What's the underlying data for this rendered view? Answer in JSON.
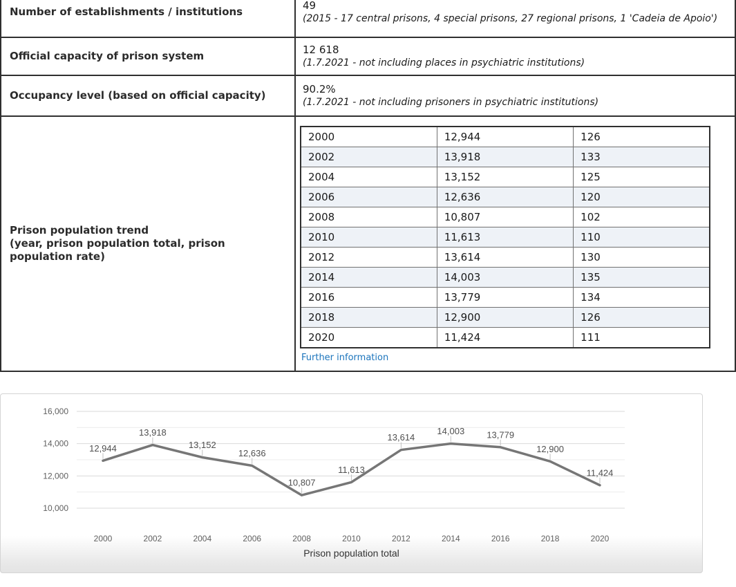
{
  "colors": {
    "link": "#1b74bc",
    "row_alt": "#eef2f7",
    "table_border": "#2f2f2f",
    "thick_separator": "#8c8c8c"
  },
  "table": {
    "rows": [
      {
        "label": "Number of establishments / institutions",
        "value": "49",
        "note": "(2015 - 17 central prisons, 4 special prisons, 27 regional prisons, 1 'Cadeia de Apoio')"
      },
      {
        "label": "Official capacity of prison system",
        "value": "12 618",
        "note": "(1.7.2021 - not including places in psychiatric institutions)"
      },
      {
        "label": "Occupancy level (based on official capacity)",
        "value": "90.2%",
        "note": "(1.7.2021 - not including prisoners in psychiatric institutions)"
      },
      {
        "label_line1": "Prison population trend",
        "label_line2": "(year, prison population total, prison population rate)"
      }
    ],
    "trend_rows": [
      [
        "2000",
        "12,944",
        "126"
      ],
      [
        "2002",
        "13,918",
        "133"
      ],
      [
        "2004",
        "13,152",
        "125"
      ],
      [
        "2006",
        "12,636",
        "120"
      ],
      [
        "2008",
        "10,807",
        "102"
      ],
      [
        "2010",
        "11,613",
        "110"
      ],
      [
        "2012",
        "13,614",
        "130"
      ],
      [
        "2014",
        "14,003",
        "135"
      ],
      [
        "2016",
        "13,779",
        "134"
      ],
      [
        "2018",
        "12,900",
        "126"
      ],
      [
        "2020",
        "11,424",
        "111"
      ]
    ],
    "further_info_label": "Further information"
  },
  "chart_data": {
    "type": "line",
    "title": "Prison population total",
    "x": [
      2000,
      2002,
      2004,
      2006,
      2008,
      2010,
      2012,
      2014,
      2016,
      2018,
      2020
    ],
    "series": [
      {
        "name": "Prison population total",
        "values": [
          12944,
          13918,
          13152,
          12636,
          10807,
          11613,
          13614,
          14003,
          13779,
          12900,
          11424
        ]
      }
    ],
    "ylim": [
      10000,
      16000
    ],
    "ytick_step": 1000,
    "ylabel_step": 2000,
    "ytick_labels": [
      "10,000",
      "12,000",
      "14,000",
      "16,000"
    ],
    "grid": true,
    "legend_position": "bottom",
    "line_color": "#767676",
    "grid_major_color": "#d9d9d9",
    "grid_minor_color": "#ececec",
    "connector_color": "#c2c2c2"
  }
}
